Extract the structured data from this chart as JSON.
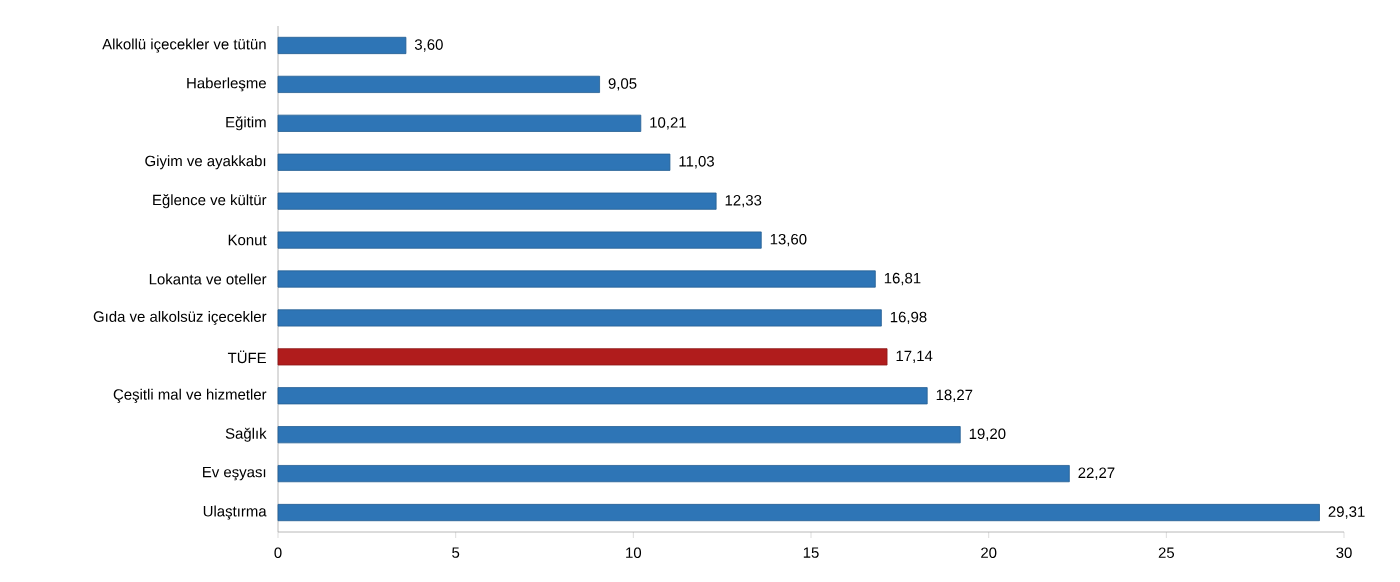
{
  "chart_data": {
    "type": "bar",
    "orientation": "horizontal",
    "categories": [
      "Alkollü içecekler ve tütün",
      "Haberleşme",
      "Eğitim",
      "Giyim ve ayakkabı",
      "Eğlence ve kültür",
      "Konut",
      "Lokanta ve oteller",
      "Gıda ve alkolsüz içecekler",
      "TÜFE",
      "Çeşitli mal ve hizmetler",
      "Sağlık",
      "Ev eşyası",
      "Ulaştırma"
    ],
    "values": [
      3.6,
      9.05,
      10.21,
      11.03,
      12.33,
      13.6,
      16.81,
      16.98,
      17.14,
      18.27,
      19.2,
      22.27,
      29.31
    ],
    "value_labels": [
      "3,60",
      "9,05",
      "10,21",
      "11,03",
      "12,33",
      "13,60",
      "16,81",
      "16,98",
      "17,14",
      "18,27",
      "19,20",
      "22,27",
      "29,31"
    ],
    "colors": [
      "#2e75b6",
      "#2e75b6",
      "#2e75b6",
      "#2e75b6",
      "#2e75b6",
      "#2e75b6",
      "#2e75b6",
      "#2e75b6",
      "#b01c1c",
      "#2e75b6",
      "#2e75b6",
      "#2e75b6",
      "#2e75b6"
    ],
    "xlim": [
      0,
      30
    ],
    "xticks": [
      0,
      5,
      10,
      15,
      20,
      25,
      30
    ]
  }
}
